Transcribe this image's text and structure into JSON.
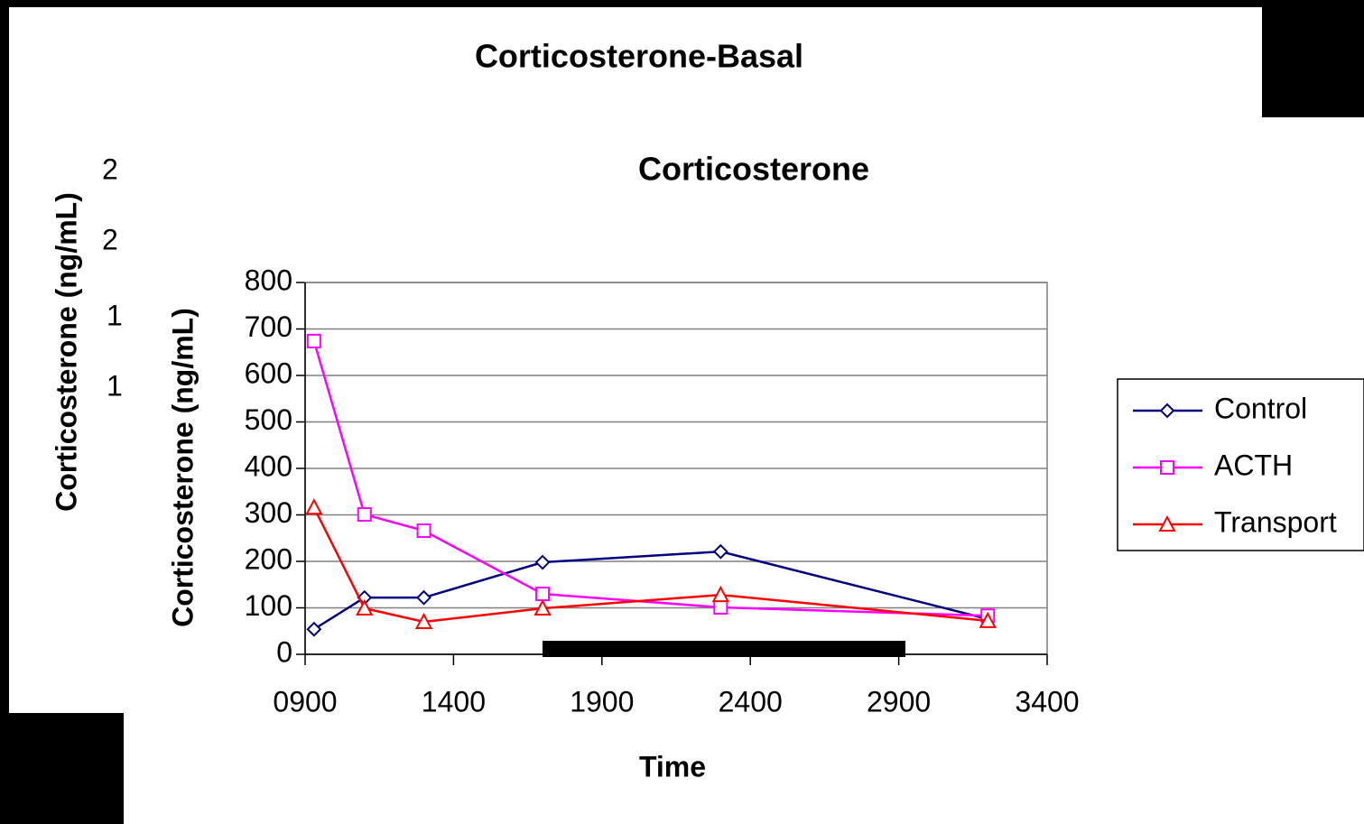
{
  "back_chart": {
    "title": "Corticosterone-Basal",
    "y_label": "Corticosterone (ng/mL)",
    "visible_tick_fragments": [
      "2",
      "2",
      "1",
      "1"
    ]
  },
  "chart_data": {
    "type": "line",
    "title": "Corticosterone",
    "x_label": "Time",
    "y_label": "Corticosterone (ng/mL)",
    "x": [
      930,
      1100,
      1300,
      1700,
      2300,
      3200
    ],
    "series": [
      {
        "name": "Control",
        "color": "#000080",
        "marker": "diamond",
        "values": [
          54,
          122,
          122,
          198,
          221,
          76
        ]
      },
      {
        "name": "ACTH",
        "color": "#ff00ff",
        "marker": "square",
        "values": [
          674,
          301,
          266,
          130,
          101,
          83
        ]
      },
      {
        "name": "Transport",
        "color": "#ff0000",
        "marker": "triangle",
        "values": [
          316,
          99,
          70,
          99,
          128,
          72
        ]
      }
    ],
    "xlim": [
      900,
      3400
    ],
    "xticks": [
      {
        "value": 900,
        "label": "0900"
      },
      1400,
      1900,
      2400,
      2900,
      3400
    ],
    "ylim": [
      0,
      800
    ],
    "yticks": [
      0,
      100,
      200,
      300,
      400,
      500,
      600,
      700,
      800
    ],
    "grid": true,
    "legend": "right"
  }
}
